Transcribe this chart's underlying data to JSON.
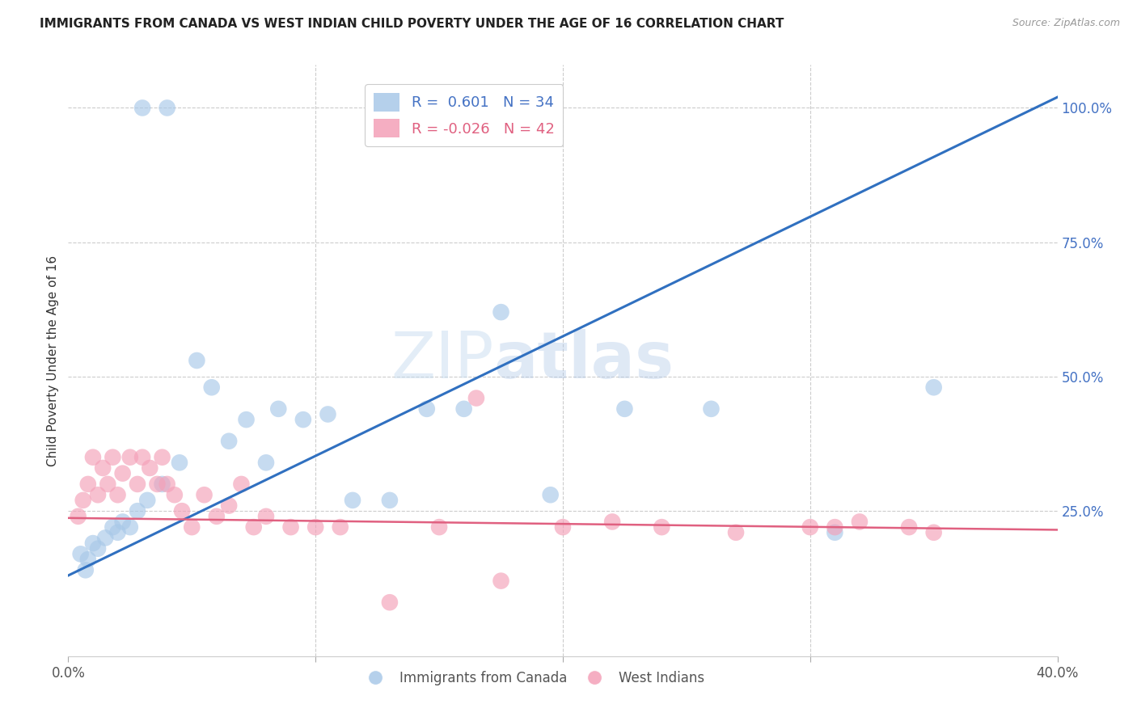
{
  "title": "IMMIGRANTS FROM CANADA VS WEST INDIAN CHILD POVERTY UNDER THE AGE OF 16 CORRELATION CHART",
  "source": "Source: ZipAtlas.com",
  "ylabel": "Child Poverty Under the Age of 16",
  "xlim": [
    0.0,
    0.4
  ],
  "ylim": [
    -0.02,
    1.08
  ],
  "blue_R": 0.601,
  "blue_N": 34,
  "pink_R": -0.026,
  "pink_N": 42,
  "blue_color": "#a8c8e8",
  "pink_color": "#f4a0b8",
  "blue_line_color": "#3070c0",
  "pink_line_color": "#e06080",
  "legend_label_blue": "Immigrants from Canada",
  "legend_label_pink": "West Indians",
  "watermark_zip": "ZIP",
  "watermark_atlas": "atlas",
  "blue_scatter_x": [
    0.005,
    0.007,
    0.008,
    0.01,
    0.012,
    0.015,
    0.018,
    0.02,
    0.022,
    0.025,
    0.028,
    0.032,
    0.038,
    0.045,
    0.052,
    0.058,
    0.065,
    0.072,
    0.08,
    0.085,
    0.095,
    0.105,
    0.115,
    0.13,
    0.145,
    0.16,
    0.175,
    0.195,
    0.225,
    0.26,
    0.31,
    0.35,
    0.03,
    0.04
  ],
  "blue_scatter_y": [
    0.17,
    0.14,
    0.16,
    0.19,
    0.18,
    0.2,
    0.22,
    0.21,
    0.23,
    0.22,
    0.25,
    0.27,
    0.3,
    0.34,
    0.53,
    0.48,
    0.38,
    0.42,
    0.34,
    0.44,
    0.42,
    0.43,
    0.27,
    0.27,
    0.44,
    0.44,
    0.62,
    0.28,
    0.44,
    0.44,
    0.21,
    0.48,
    1.0,
    1.0
  ],
  "pink_scatter_x": [
    0.004,
    0.006,
    0.008,
    0.01,
    0.012,
    0.014,
    0.016,
    0.018,
    0.02,
    0.022,
    0.025,
    0.028,
    0.03,
    0.033,
    0.036,
    0.038,
    0.04,
    0.043,
    0.046,
    0.05,
    0.055,
    0.06,
    0.065,
    0.07,
    0.075,
    0.08,
    0.09,
    0.1,
    0.11,
    0.13,
    0.15,
    0.165,
    0.175,
    0.2,
    0.22,
    0.24,
    0.27,
    0.3,
    0.32,
    0.34,
    0.35,
    0.31
  ],
  "pink_scatter_y": [
    0.24,
    0.27,
    0.3,
    0.35,
    0.28,
    0.33,
    0.3,
    0.35,
    0.28,
    0.32,
    0.35,
    0.3,
    0.35,
    0.33,
    0.3,
    0.35,
    0.3,
    0.28,
    0.25,
    0.22,
    0.28,
    0.24,
    0.26,
    0.3,
    0.22,
    0.24,
    0.22,
    0.22,
    0.22,
    0.08,
    0.22,
    0.46,
    0.12,
    0.22,
    0.23,
    0.22,
    0.21,
    0.22,
    0.23,
    0.22,
    0.21,
    0.22
  ],
  "blue_trendline_x": [
    0.0,
    0.4
  ],
  "blue_trendline_y": [
    0.13,
    1.02
  ],
  "pink_trendline_x": [
    0.0,
    0.4
  ],
  "pink_trendline_y": [
    0.237,
    0.215
  ]
}
